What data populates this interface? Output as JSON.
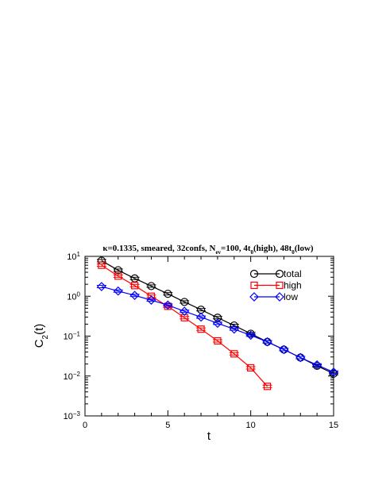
{
  "chart_data": {
    "type": "line",
    "title": {
      "pre": "κ=0.1335, smeared, 32confs, N",
      "sub1": "ev",
      "mid1": "=100, 4t",
      "sub2": "0",
      "mid2": "(high), 48t",
      "sub3": "0",
      "post": "(low)"
    },
    "xlabel": "t",
    "ylabel": {
      "base": "C",
      "sub": "2",
      "post": "(t)"
    },
    "xlim": [
      0,
      15
    ],
    "ylim": [
      0.001,
      10
    ],
    "yscale": "log",
    "xticks": [
      "0",
      "5",
      "10",
      "15"
    ],
    "yticks": [
      {
        "base": "10",
        "exp": "1",
        "value": 10
      },
      {
        "base": "10",
        "exp": "0",
        "value": 1
      },
      {
        "base": "10",
        "exp": "−1",
        "value": 0.1
      },
      {
        "base": "10",
        "exp": "−2",
        "value": 0.01
      },
      {
        "base": "10",
        "exp": "−3",
        "value": 0.001
      }
    ],
    "grid": false,
    "legend_position": "top-right",
    "series": [
      {
        "name": "total",
        "color": "#000000",
        "marker": "circle",
        "x": [
          1,
          2,
          3,
          4,
          5,
          6,
          7,
          8,
          9,
          10,
          11,
          12,
          13,
          14,
          15
        ],
        "y": [
          7.8,
          4.5,
          2.8,
          1.8,
          1.15,
          0.72,
          0.46,
          0.29,
          0.185,
          0.115,
          0.072,
          0.046,
          0.029,
          0.018,
          0.0115
        ]
      },
      {
        "name": "high",
        "color": "#ff0000",
        "marker": "square",
        "x": [
          1,
          2,
          3,
          4,
          5,
          6,
          7,
          8,
          9,
          10,
          11
        ],
        "y": [
          6.0,
          3.2,
          1.85,
          1.0,
          0.56,
          0.29,
          0.15,
          0.076,
          0.036,
          0.016,
          0.0055
        ]
      },
      {
        "name": "low",
        "color": "#0000ff",
        "marker": "diamond",
        "x": [
          1,
          2,
          3,
          4,
          5,
          6,
          7,
          8,
          9,
          10,
          11,
          12,
          13,
          14,
          15
        ],
        "y": [
          1.75,
          1.35,
          1.05,
          0.8,
          0.6,
          0.42,
          0.3,
          0.21,
          0.15,
          0.105,
          0.072,
          0.046,
          0.029,
          0.019,
          0.0125
        ]
      }
    ]
  }
}
